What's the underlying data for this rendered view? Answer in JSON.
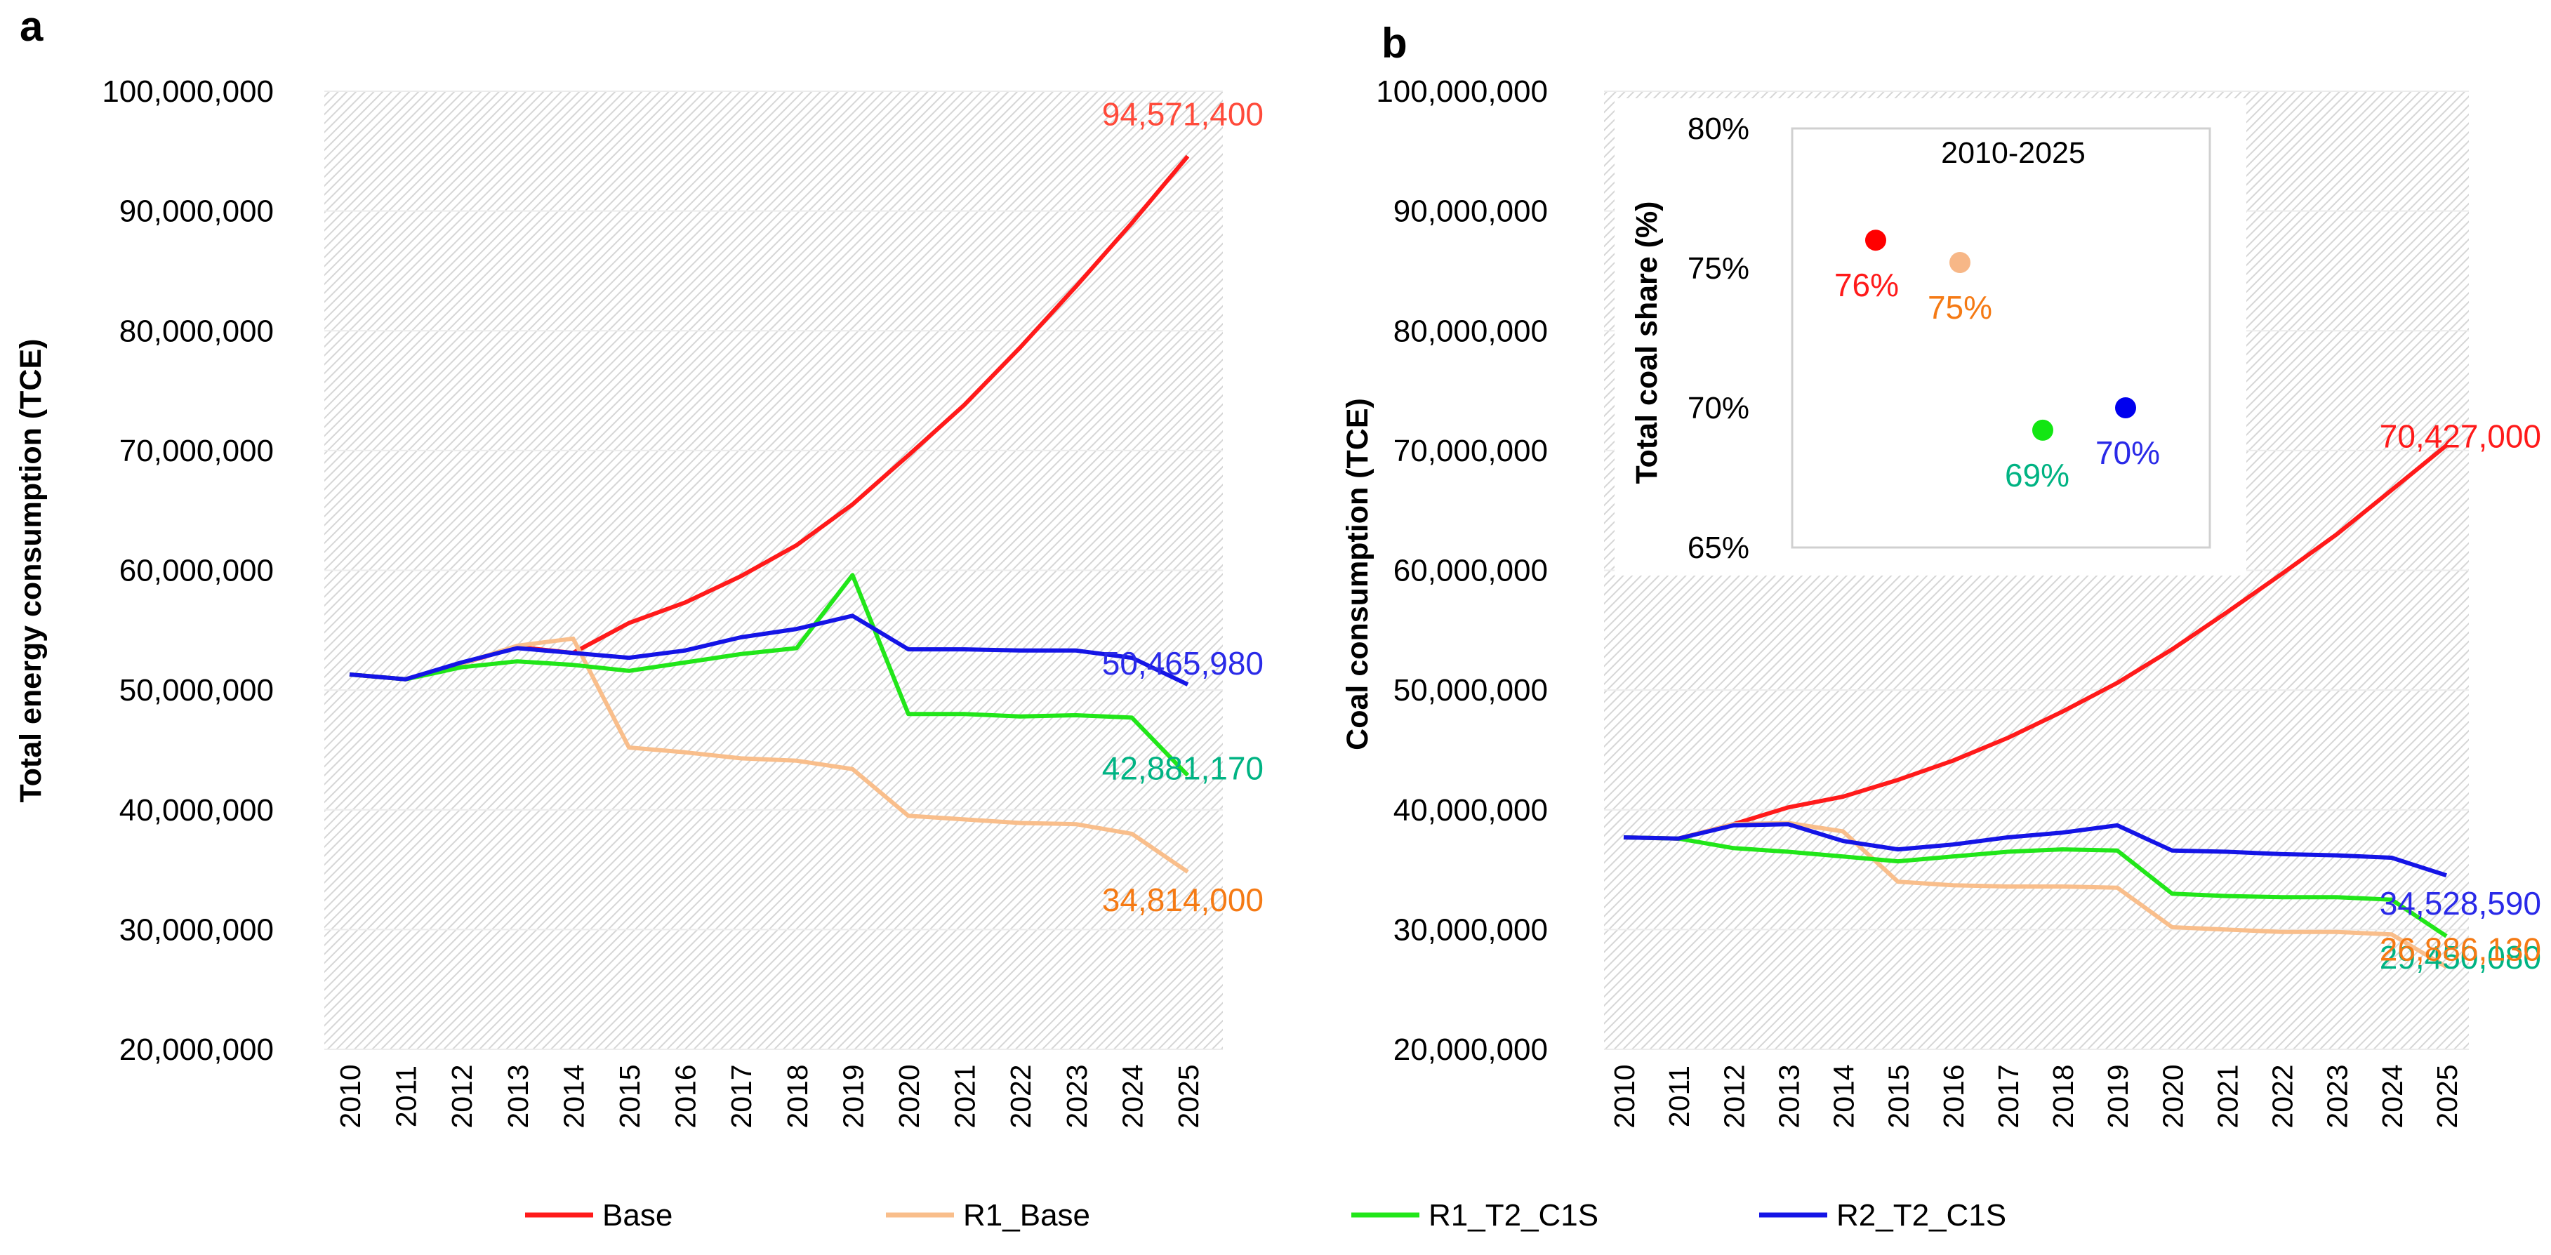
{
  "chart_data": [
    {
      "panel_label": "a",
      "type": "line",
      "title": "",
      "xlabel": "",
      "ylabel": "Total energy consumption  (TCE)",
      "ylim": [
        20000000,
        100000000
      ],
      "yticks": [
        20000000,
        30000000,
        40000000,
        50000000,
        60000000,
        70000000,
        80000000,
        90000000,
        100000000
      ],
      "ytick_labels": [
        "20,000,000",
        "30,000,000",
        "40,000,000",
        "50,000,000",
        "60,000,000",
        "70,000,000",
        "80,000,000",
        "90,000,000",
        "100,000,000"
      ],
      "categories": [
        "2010",
        "2011",
        "2012",
        "2013",
        "2014",
        "2015",
        "2016",
        "2017",
        "2018",
        "2019",
        "2020",
        "2021",
        "2022",
        "2023",
        "2024",
        "2025"
      ],
      "series": [
        {
          "name": "Base",
          "color": "#ff1a1a",
          "values": [
            51300000,
            50900000,
            52200000,
            53600000,
            53100000,
            55600000,
            57300000,
            59500000,
            62100000,
            65500000,
            69600000,
            73800000,
            78600000,
            83700000,
            89000000,
            94571400
          ]
        },
        {
          "name": "R1_Base",
          "color": "#f9be8b",
          "values": [
            51300000,
            50900000,
            52200000,
            53700000,
            54300000,
            45200000,
            44800000,
            44300000,
            44100000,
            43400000,
            39500000,
            39200000,
            38900000,
            38800000,
            38000000,
            34814000
          ]
        },
        {
          "name": "R1_T2_C1S",
          "color": "#21e619",
          "values": [
            51300000,
            50900000,
            51900000,
            52400000,
            52100000,
            51600000,
            52300000,
            53000000,
            53500000,
            59600000,
            48000000,
            48000000,
            47800000,
            47900000,
            47700000,
            42881170
          ]
        },
        {
          "name": "R2_T2_C1S",
          "color": "#1414e6",
          "values": [
            51300000,
            50900000,
            52300000,
            53500000,
            53100000,
            52700000,
            53300000,
            54400000,
            55100000,
            56200000,
            53400000,
            53400000,
            53300000,
            53300000,
            52700000,
            50465980
          ]
        }
      ],
      "end_labels": [
        {
          "series": "Base",
          "text": "94,571,400",
          "color": "#ff4a3a"
        },
        {
          "series": "R2_T2_C1S",
          "text": "50,465,980",
          "color": "#2a2ae8"
        },
        {
          "series": "R1_T2_C1S",
          "text": "42,881,170",
          "color": "#00b383"
        },
        {
          "series": "R1_Base",
          "text": "34,814,000",
          "color": "#f57a14"
        }
      ],
      "grid": true,
      "legend": "bottom"
    },
    {
      "panel_label": "b",
      "type": "line",
      "title": "",
      "xlabel": "",
      "ylabel": "Coal consumption (TCE)",
      "ylim": [
        20000000,
        100000000
      ],
      "yticks": [
        20000000,
        30000000,
        40000000,
        50000000,
        60000000,
        70000000,
        80000000,
        90000000,
        100000000
      ],
      "ytick_labels": [
        "20,000,000",
        "30,000,000",
        "40,000,000",
        "50,000,000",
        "60,000,000",
        "70,000,000",
        "80,000,000",
        "90,000,000",
        "100,000,000"
      ],
      "categories": [
        "2010",
        "2011",
        "2012",
        "2013",
        "2014",
        "2015",
        "2016",
        "2017",
        "2018",
        "2019",
        "2020",
        "2021",
        "2022",
        "2023",
        "2024",
        "2025"
      ],
      "series": [
        {
          "name": "Base",
          "color": "#ff1a1a",
          "values": [
            37700000,
            37600000,
            38800000,
            40200000,
            41100000,
            42500000,
            44100000,
            46000000,
            48200000,
            50600000,
            53400000,
            56500000,
            59700000,
            63000000,
            66700000,
            70427000
          ]
        },
        {
          "name": "R1_Base",
          "color": "#f9be8b",
          "values": [
            37700000,
            37600000,
            38800000,
            38900000,
            38200000,
            34000000,
            33700000,
            33600000,
            33600000,
            33500000,
            30200000,
            30000000,
            29800000,
            29800000,
            29600000,
            26886130
          ]
        },
        {
          "name": "R1_T2_C1S",
          "color": "#21e619",
          "values": [
            37700000,
            37600000,
            36800000,
            36500000,
            36100000,
            35700000,
            36100000,
            36500000,
            36700000,
            36600000,
            33000000,
            32800000,
            32700000,
            32700000,
            32500000,
            29450080
          ]
        },
        {
          "name": "R2_T2_C1S",
          "color": "#1414e6",
          "values": [
            37700000,
            37600000,
            38700000,
            38800000,
            37400000,
            36700000,
            37100000,
            37700000,
            38100000,
            38700000,
            36600000,
            36500000,
            36300000,
            36200000,
            36000000,
            34528590
          ]
        }
      ],
      "end_labels": [
        {
          "series": "Base",
          "text": "70,427,000",
          "color": "#ff1a1a"
        },
        {
          "series": "R2_T2_C1S",
          "text": "34,528,590",
          "color": "#2a2ae8"
        },
        {
          "series": "R1_T2_C1S",
          "text": "29,450,080",
          "color": "#00b383"
        },
        {
          "series": "R1_Base",
          "text": "26,886,130",
          "color": "#f57a14"
        }
      ],
      "grid": true,
      "legend": "bottom",
      "inset": {
        "type": "scatter",
        "title": "2010-2025",
        "ylabel": "Total coal share (%)",
        "ylim": [
          65,
          80
        ],
        "yticks": [
          65,
          70,
          75,
          80
        ],
        "ytick_labels": [
          "65%",
          "70%",
          "75%",
          "80%"
        ],
        "points": [
          {
            "series": "Base",
            "x": 1,
            "y": 76,
            "label": "76%",
            "color": "#ff0000",
            "label_color": "#ff1a1a"
          },
          {
            "series": "R1_Base",
            "x": 2,
            "y": 75.2,
            "label": "75%",
            "color": "#f7b787",
            "label_color": "#f57a14"
          },
          {
            "series": "R1_T2_C1S",
            "x": 3,
            "y": 69.2,
            "label": "69%",
            "color": "#13e613",
            "label_color": "#00b383"
          },
          {
            "series": "R2_T2_C1S",
            "x": 4,
            "y": 70,
            "label": "70%",
            "color": "#0000ee",
            "label_color": "#2a2ae8"
          }
        ]
      }
    }
  ],
  "legend": [
    {
      "name": "Base",
      "color": "#ff1a1a"
    },
    {
      "name": "R1_Base",
      "color": "#f9be8b"
    },
    {
      "name": "R1_T2_C1S",
      "color": "#21e619"
    },
    {
      "name": "R2_T2_C1S",
      "color": "#1414e6"
    }
  ]
}
